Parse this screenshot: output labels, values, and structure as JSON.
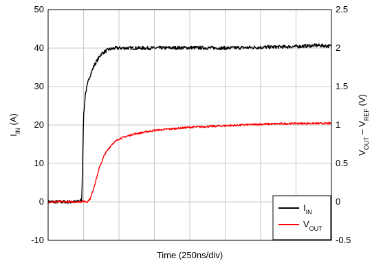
{
  "chart_data": {
    "type": "line",
    "xlabel": "Time (250ns/div)",
    "ylabel_left": {
      "main": "I",
      "sub": "IN",
      "suffix": " (A)"
    },
    "ylabel_right": {
      "main1": "V",
      "sub1": "OUT",
      "mid": " – V",
      "sub2": "REF",
      "suffix": " (V)"
    },
    "x_divisions": 8,
    "y_left": {
      "min": -10,
      "max": 50,
      "ticks": [
        "-10",
        "0",
        "10",
        "20",
        "30",
        "40",
        "50"
      ]
    },
    "y_right": {
      "min": -0.5,
      "max": 2.5,
      "ticks": [
        "-0.5",
        "0",
        "0.5",
        "1",
        "1.5",
        "2",
        "2.5"
      ]
    },
    "grid": true,
    "legend": {
      "placement": "bottom-right",
      "entries": [
        {
          "main": "I",
          "sub": "IN",
          "color": "#000000"
        },
        {
          "main": "V",
          "sub": "OUT",
          "color": "#ff0000"
        }
      ]
    },
    "series": [
      {
        "axis": "left",
        "color": "#000000",
        "points": [
          [
            0,
            0
          ],
          [
            0.8,
            0
          ],
          [
            0.95,
            0.5
          ],
          [
            1.0,
            22
          ],
          [
            1.05,
            28
          ],
          [
            1.15,
            32
          ],
          [
            1.3,
            35.5
          ],
          [
            1.5,
            38.5
          ],
          [
            1.7,
            39.6
          ],
          [
            1.9,
            40
          ],
          [
            3,
            40
          ],
          [
            4,
            40.1
          ],
          [
            5,
            40
          ],
          [
            6,
            40.2
          ],
          [
            7,
            40.4
          ],
          [
            7.6,
            40.7
          ],
          [
            8,
            40.5
          ]
        ]
      },
      {
        "axis": "right",
        "color": "#ff0000",
        "points": [
          [
            0,
            0
          ],
          [
            0.9,
            0
          ],
          [
            1.0,
            0.01
          ],
          [
            1.1,
            0
          ],
          [
            1.2,
            0.05
          ],
          [
            1.3,
            0.2
          ],
          [
            1.45,
            0.45
          ],
          [
            1.6,
            0.62
          ],
          [
            1.8,
            0.75
          ],
          [
            2.0,
            0.82
          ],
          [
            2.4,
            0.88
          ],
          [
            3,
            0.93
          ],
          [
            4,
            0.97
          ],
          [
            5,
            0.99
          ],
          [
            6,
            1.01
          ],
          [
            7,
            1.02
          ],
          [
            8,
            1.02
          ]
        ]
      }
    ]
  }
}
